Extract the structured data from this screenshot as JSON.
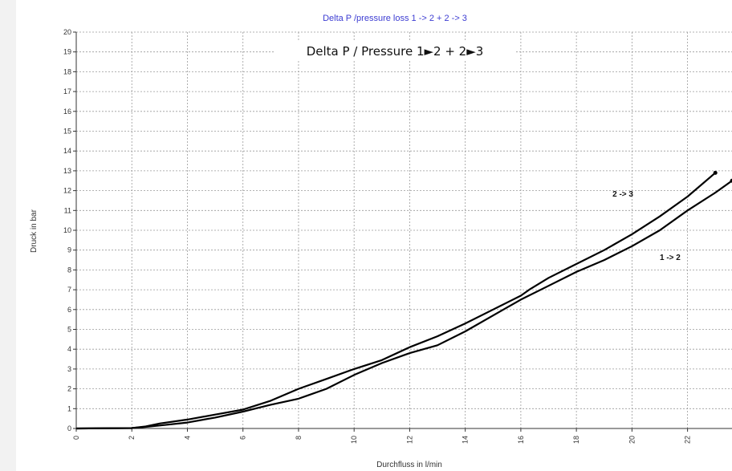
{
  "chart_data": {
    "type": "line",
    "title": "Delta P /pressure loss  1 -> 2 + 2 -> 3",
    "subtitle": "Delta P / Pressure 1►2 + 2►3",
    "xlabel": "Durchfluss in l/min",
    "ylabel": "Druck in bar",
    "xlim": [
      0,
      23.6
    ],
    "ylim": [
      0,
      20
    ],
    "x_ticks": [
      0,
      2,
      4,
      6,
      8,
      10,
      12,
      14,
      16,
      18,
      20,
      22
    ],
    "y_ticks": [
      0,
      1,
      2,
      3,
      4,
      5,
      6,
      7,
      8,
      9,
      10,
      11,
      12,
      13,
      14,
      15,
      16,
      17,
      18,
      19,
      20
    ],
    "grid": true,
    "series": [
      {
        "name": "2 -> 3",
        "x": [
          0,
          2.0,
          2.5,
          3.0,
          4.0,
          5.0,
          6.0,
          7.0,
          8.0,
          9.0,
          10.0,
          11.0,
          12.0,
          13.0,
          14.0,
          15.0,
          16.0,
          16.3,
          17.0,
          18.0,
          19.0,
          20.0,
          21.0,
          22.0,
          23.0
        ],
        "y": [
          0,
          0.02,
          0.1,
          0.25,
          0.45,
          0.7,
          0.95,
          1.4,
          2.0,
          2.5,
          3.0,
          3.45,
          4.1,
          4.65,
          5.3,
          6.0,
          6.7,
          7.0,
          7.6,
          8.3,
          9.0,
          9.8,
          10.7,
          11.7,
          12.9
        ],
        "color": "#000000"
      },
      {
        "name": "1 -> 2",
        "x": [
          0,
          2.0,
          2.5,
          3.0,
          4.0,
          5.0,
          6.0,
          7.0,
          8.0,
          9.0,
          10.0,
          11.0,
          12.0,
          13.0,
          14.0,
          15.0,
          16.0,
          17.0,
          18.0,
          19.0,
          20.0,
          21.0,
          22.0,
          23.0,
          23.6
        ],
        "y": [
          0,
          0.02,
          0.08,
          0.15,
          0.3,
          0.55,
          0.85,
          1.2,
          1.5,
          2.0,
          2.7,
          3.3,
          3.8,
          4.2,
          4.9,
          5.7,
          6.5,
          7.2,
          7.9,
          8.5,
          9.2,
          10.0,
          11.0,
          11.9,
          12.5
        ],
        "color": "#000000"
      }
    ]
  }
}
